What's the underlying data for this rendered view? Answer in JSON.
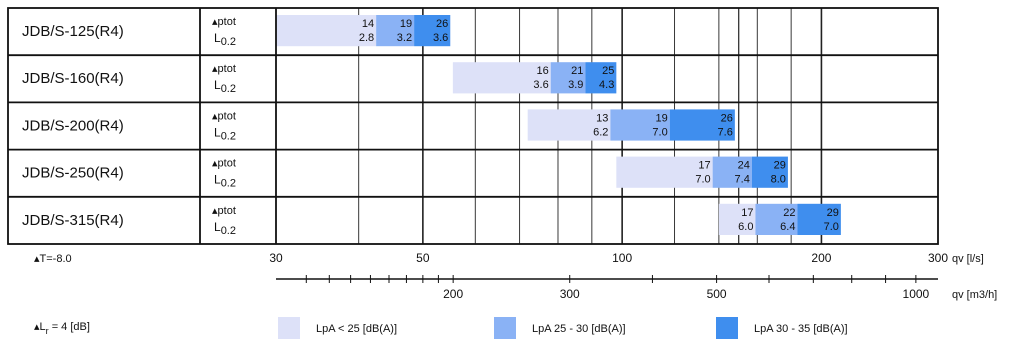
{
  "chart_data": {
    "type": "bar",
    "notes": {
      "delta_t": "▴T=-8.0",
      "lr": "▴L",
      "lr_sub": "r",
      "lr_rest": " = 4 [dB]"
    },
    "param_labels": {
      "top": "▴ptot",
      "bottom": "L",
      "bottom_sub": "0.2"
    },
    "axis_ls": {
      "unit": "qv [l/s]",
      "range": [
        30,
        300
      ],
      "scale": "log",
      "ticks": [
        30,
        50,
        100,
        200,
        300
      ]
    },
    "axis_m3h": {
      "unit": "qv [m3/h]",
      "ticks": [
        200,
        300,
        500,
        1000
      ]
    },
    "colors": {
      "light": "#dde1f8",
      "mid": "#8ab2f5",
      "dark": "#3f8eee"
    },
    "legend": [
      {
        "label": "LpA < 25 [dB(A)]",
        "color": "light"
      },
      {
        "label": "LpA 25 - 30 [dB(A)]",
        "color": "mid"
      },
      {
        "label": "LpA 30 - 35 [dB(A)]",
        "color": "dark"
      }
    ],
    "rows": [
      {
        "model": "JDB/S-125(R4)",
        "segments": [
          {
            "color": "light",
            "from": 30,
            "to": 42.5,
            "ptot": "14",
            "l02": "2.8"
          },
          {
            "color": "mid",
            "from": 42.5,
            "to": 48.5,
            "ptot": "19",
            "l02": "3.2"
          },
          {
            "color": "dark",
            "from": 48.5,
            "to": 55,
            "ptot": "26",
            "l02": "3.6"
          }
        ]
      },
      {
        "model": "JDB/S-160(R4)",
        "segments": [
          {
            "color": "light",
            "from": 55.5,
            "to": 78,
            "ptot": "16",
            "l02": "3.6"
          },
          {
            "color": "mid",
            "from": 78,
            "to": 88,
            "ptot": "21",
            "l02": "3.9"
          },
          {
            "color": "dark",
            "from": 88,
            "to": 98,
            "ptot": "25",
            "l02": "4.3"
          }
        ]
      },
      {
        "model": "JDB/S-200(R4)",
        "segments": [
          {
            "color": "light",
            "from": 72,
            "to": 96,
            "ptot": "13",
            "l02": "6.2"
          },
          {
            "color": "mid",
            "from": 96,
            "to": 118,
            "ptot": "19",
            "l02": "7.0"
          },
          {
            "color": "dark",
            "from": 118,
            "to": 148,
            "ptot": "26",
            "l02": "7.6"
          }
        ]
      },
      {
        "model": "JDB/S-250(R4)",
        "segments": [
          {
            "color": "light",
            "from": 98,
            "to": 137,
            "ptot": "17",
            "l02": "7.0"
          },
          {
            "color": "mid",
            "from": 137,
            "to": 157,
            "ptot": "24",
            "l02": "7.4"
          },
          {
            "color": "dark",
            "from": 157,
            "to": 178,
            "ptot": "29",
            "l02": "8.0"
          }
        ]
      },
      {
        "model": "JDB/S-315(R4)",
        "segments": [
          {
            "color": "light",
            "from": 140,
            "to": 159,
            "ptot": "17",
            "l02": "6.0"
          },
          {
            "color": "mid",
            "from": 159,
            "to": 184,
            "ptot": "22",
            "l02": "6.4"
          },
          {
            "color": "dark",
            "from": 184,
            "to": 214,
            "ptot": "29",
            "l02": "7.0"
          }
        ]
      }
    ]
  }
}
